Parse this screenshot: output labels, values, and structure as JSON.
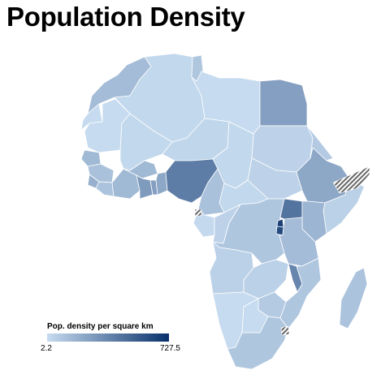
{
  "title": "Population Density",
  "legend": {
    "title": "Pop. density per square km",
    "min_label": "2.2",
    "max_label": "727.5",
    "min_value": 2.2,
    "max_value": 727.5,
    "color_low": "#c6dbef",
    "color_high": "#08306b"
  },
  "no_data_pattern": "diagonal-hatch",
  "map_data": {
    "type": "choropleth",
    "region": "Africa",
    "countries": [
      {
        "name": "Morocco",
        "level": 0.18
      },
      {
        "name": "Western Sahara",
        "level": 0.0
      },
      {
        "name": "Algeria",
        "level": 0.02
      },
      {
        "name": "Tunisia",
        "level": 0.12
      },
      {
        "name": "Libya",
        "level": 0.0
      },
      {
        "name": "Egypt",
        "level": 0.35
      },
      {
        "name": "Mauritania",
        "level": 0.0
      },
      {
        "name": "Mali",
        "level": 0.02
      },
      {
        "name": "Niger",
        "level": 0.03
      },
      {
        "name": "Chad",
        "level": 0.02
      },
      {
        "name": "Sudan",
        "level": 0.05
      },
      {
        "name": "South Sudan",
        "level": 0.05
      },
      {
        "name": "Eritrea",
        "level": 0.1
      },
      {
        "name": "Ethiopia",
        "level": 0.3
      },
      {
        "name": "Somalia",
        "level": 0.06
      },
      {
        "name": "Senegal",
        "level": 0.2
      },
      {
        "name": "Guinea",
        "level": 0.15
      },
      {
        "name": "Sierra Leone",
        "level": 0.25
      },
      {
        "name": "Liberia",
        "level": 0.14
      },
      {
        "name": "Ivory Coast",
        "level": 0.2
      },
      {
        "name": "Burkina Faso",
        "level": 0.2
      },
      {
        "name": "Ghana",
        "level": 0.38
      },
      {
        "name": "Togo",
        "level": 0.35
      },
      {
        "name": "Benin",
        "level": 0.3
      },
      {
        "name": "Nigeria",
        "level": 0.55
      },
      {
        "name": "Cameroon",
        "level": 0.15
      },
      {
        "name": "Central African Republic",
        "level": 0.02
      },
      {
        "name": "Gabon",
        "level": 0.01
      },
      {
        "name": "Republic of the Congo",
        "level": 0.05
      },
      {
        "name": "Democratic Republic of the Congo",
        "level": 0.12
      },
      {
        "name": "Uganda",
        "level": 0.6
      },
      {
        "name": "Kenya",
        "level": 0.22
      },
      {
        "name": "Rwanda",
        "level": 0.9
      },
      {
        "name": "Burundi",
        "level": 0.85
      },
      {
        "name": "Tanzania",
        "level": 0.18
      },
      {
        "name": "Angola",
        "level": 0.06
      },
      {
        "name": "Zambia",
        "level": 0.06
      },
      {
        "name": "Malawi",
        "level": 0.5
      },
      {
        "name": "Mozambique",
        "level": 0.12
      },
      {
        "name": "Zimbabwe",
        "level": 0.1
      },
      {
        "name": "Namibia",
        "level": 0.0
      },
      {
        "name": "Botswana",
        "level": 0.0
      },
      {
        "name": "South Africa",
        "level": 0.12
      },
      {
        "name": "Madagascar",
        "level": 0.14
      }
    ],
    "no_data": [
      "Somaliland",
      "Equatorial Guinea",
      "Eswatini"
    ]
  }
}
